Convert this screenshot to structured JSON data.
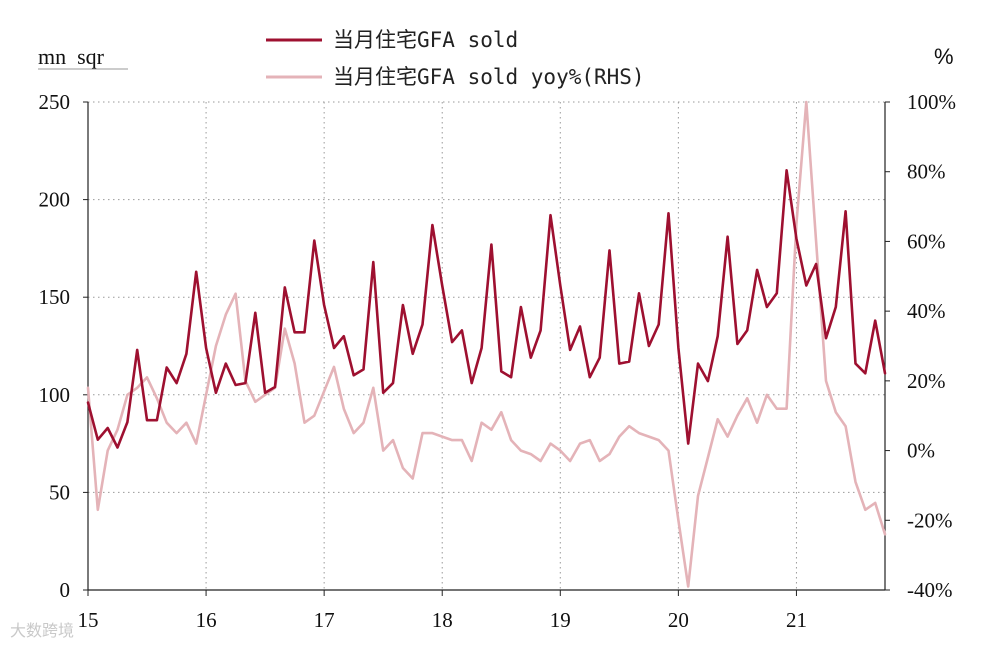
{
  "chart_data": {
    "type": "line",
    "title": "",
    "left_axis_label": "mn  sqr",
    "right_axis_label": "%",
    "ylim_left": [
      0,
      250
    ],
    "ylim_right": [
      -40,
      100
    ],
    "left_ticks": [
      "0",
      "50",
      "100",
      "150",
      "200",
      "250"
    ],
    "right_ticks": [
      "-40%",
      "-20%",
      "0%",
      "20%",
      "40%",
      "60%",
      "80%",
      "100%"
    ],
    "x_ticks": [
      "15",
      "16",
      "17",
      "18",
      "19",
      "20",
      "21"
    ],
    "x_range_months": [
      0,
      81
    ],
    "grid": true,
    "series": [
      {
        "name": "当月住宅GFA sold",
        "axis": "left",
        "color": "#9e1030",
        "values": [
          96,
          77,
          83,
          73,
          86,
          123,
          87,
          87,
          114,
          106,
          121,
          163,
          124,
          101,
          116,
          105,
          106,
          142,
          101,
          104,
          155,
          132,
          132,
          179,
          146,
          124,
          130,
          110,
          113,
          168,
          101,
          106,
          146,
          121,
          136,
          187,
          156,
          127,
          133,
          106,
          124,
          177,
          112,
          109,
          145,
          119,
          133,
          192,
          156,
          123,
          135,
          109,
          119,
          174,
          116,
          117,
          152,
          125,
          136,
          193,
          124,
          75,
          116,
          107,
          130,
          181,
          126,
          133,
          164,
          145,
          152,
          215,
          180,
          156,
          167,
          129,
          145,
          194,
          116,
          111,
          138,
          111
        ]
      },
      {
        "name": "当月住宅GFA sold yoy%(RHS)",
        "axis": "right",
        "color": "#e4b3b8",
        "values": [
          18,
          -17,
          0,
          6,
          16,
          18,
          21,
          15,
          8,
          5,
          8,
          2,
          16,
          30,
          39,
          45,
          20,
          14,
          16,
          18,
          35,
          25,
          8,
          10,
          17,
          24,
          12,
          5,
          8,
          18,
          0,
          3,
          -5,
          -8,
          5,
          5,
          4,
          3,
          3,
          -3,
          8,
          6,
          11,
          3,
          0,
          -1,
          -3,
          2,
          0,
          -3,
          2,
          3,
          -3,
          -1,
          4,
          7,
          5,
          4,
          3,
          0,
          -20,
          -39,
          -13,
          -2,
          9,
          4,
          10,
          15,
          8,
          16,
          12,
          12,
          65,
          100,
          60,
          20,
          11,
          7,
          -9,
          -17,
          -15,
          -24
        ]
      }
    ]
  },
  "watermark": "大数跨境"
}
